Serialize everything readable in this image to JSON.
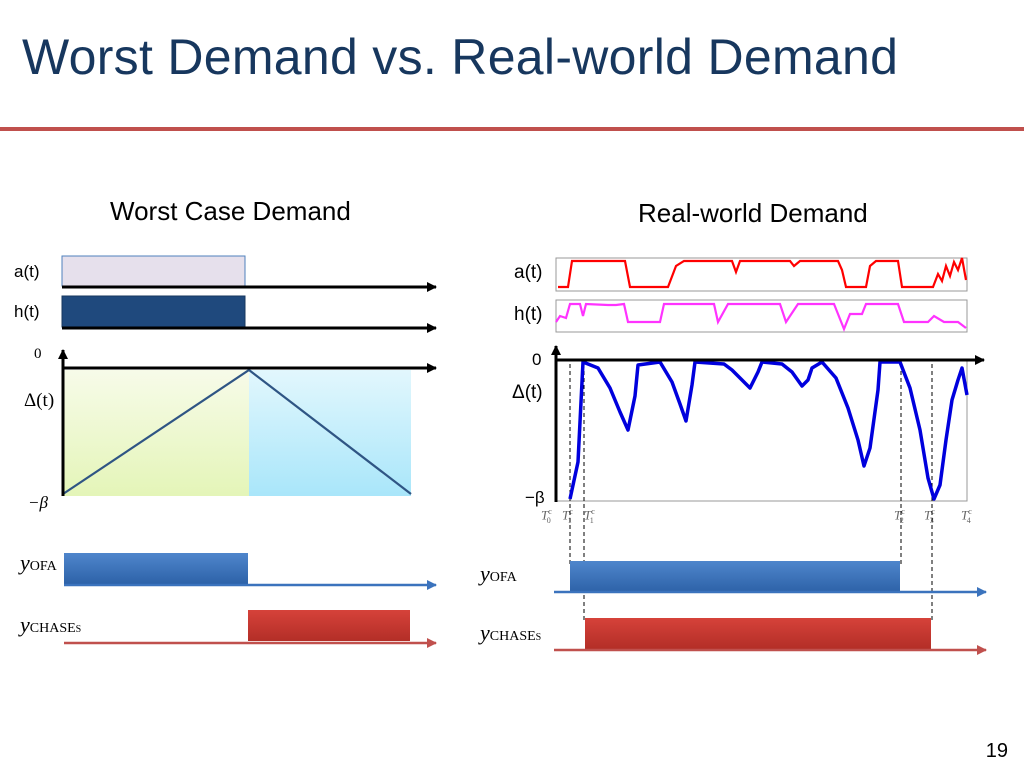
{
  "slide": {
    "title": "Worst Demand vs. Real-world Demand",
    "page_number": "19"
  },
  "left": {
    "heading": "Worst Case Demand",
    "a_label": "a(t)",
    "h_label": "h(t)",
    "zero_label": "0",
    "delta_label": "Δ(t)",
    "beta_label": "−β",
    "ofa_y": "y",
    "ofa_sub": "OFA",
    "chase_y": "y",
    "chase_sub": "CHASE",
    "chase_subsub": "S"
  },
  "right": {
    "heading": "Real-world Demand",
    "a_label": "a(t)",
    "h_label": "h(t)",
    "zero_label": "0",
    "delta_label": "Δ(t)",
    "beta_label": "−β",
    "ticks": [
      {
        "T": "T",
        "sub": "0",
        "sup": "c"
      },
      {
        "T": "T",
        "sub": "1",
        "sup": "c"
      },
      {
        "T": "T",
        "sub": "1",
        "sup": "c"
      },
      {
        "T": "T",
        "sub": "2",
        "sup": "c"
      },
      {
        "T": "T",
        "sub": "3",
        "sup": "c"
      },
      {
        "T": "T",
        "sub": "4",
        "sup": "c"
      }
    ],
    "ofa_y": "y",
    "ofa_sub": "OFA",
    "chase_y": "y",
    "chase_sub": "CHASE",
    "chase_subsub": "S"
  },
  "colors": {
    "title": "#17375e",
    "rule": "#c0504d",
    "a_bar": "#e6e0ec",
    "h_bar": "#1f497d",
    "green_fill": "#ebf7c9",
    "blue_fill": "#b7ecfb",
    "ofa": "#3b73bd",
    "chase": "#c0392b",
    "real_a": "#ff0000",
    "real_h": "#ff33ff",
    "real_delta": "#0000dd"
  }
}
